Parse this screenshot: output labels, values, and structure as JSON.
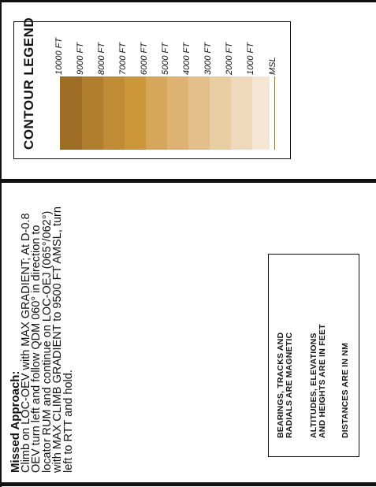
{
  "legend": {
    "title": "CONTOUR LEGEND",
    "levels": [
      {
        "label": "10000 FT",
        "color": "#9e6d25"
      },
      {
        "label": "9000 FT",
        "color": "#b07d2e"
      },
      {
        "label": "8000 FT",
        "color": "#bf8b34"
      },
      {
        "label": "7000 FT",
        "color": "#cc9739"
      },
      {
        "label": "6000 FT",
        "color": "#d6a65a"
      },
      {
        "label": "5000 FT",
        "color": "#ddb273"
      },
      {
        "label": "4000 FT",
        "color": "#e3bf8b"
      },
      {
        "label": "3000 FT",
        "color": "#e8cca2"
      },
      {
        "label": "2000 FT",
        "color": "#efd9bc"
      },
      {
        "label": "1000 FT",
        "color": "#f4e6d3"
      },
      {
        "label": "MSL",
        "color": "#ffffff"
      }
    ]
  },
  "missed_approach": {
    "heading": "Missed Approach:",
    "text": "Climb on LOC-OEV with MAX GRADIENT; At D-0.8 OEV turn left and follow QDM 060° in direction to locator RUM and continue on LOC-OEJ (065°/062°) with MAX CLIMB GRADIENT to 9500 FT AMSL, turn left to RTT and hold."
  },
  "notes": {
    "bearings": [
      "BEARINGS, TRACKS AND",
      "RADIALS ARE MAGNETIC"
    ],
    "altitudes": [
      "ALTITUDES, ELEVATIONS",
      "AND HEIGHTS ARE IN FEET"
    ],
    "distances": [
      "DISTANCES ARE IN NM"
    ]
  }
}
